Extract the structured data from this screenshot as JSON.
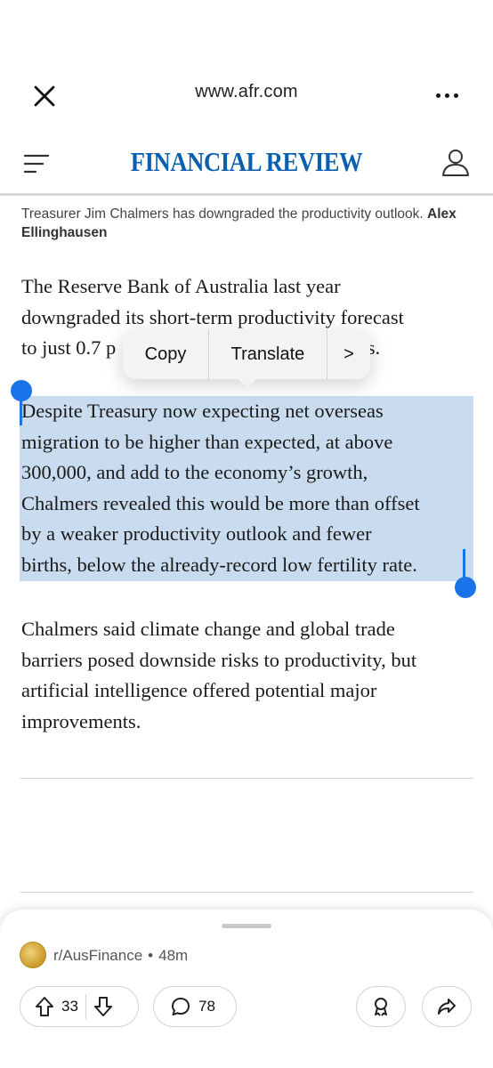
{
  "browser": {
    "url": "www.afr.com"
  },
  "site": {
    "brand": "FINANCIAL REVIEW"
  },
  "article": {
    "caption_text": "Treasurer Jim Chalmers has downgraded the productivity outlook.",
    "caption_credit": "Alex Ellinghausen",
    "para1": {
      "line1": "The Reserve Bank of Australia last year",
      "line2": "downgraded its short-term productivity forecast",
      "line3_start": "to just 0.7 p",
      "line3_end": "ars."
    },
    "para2": {
      "lines": [
        "Despite Treasury now expecting net overseas",
        "migration to be higher than expected, at above",
        "300,000, and add to the economy’s growth,",
        "Chalmers revealed this would be more than offset",
        "by a weaker productivity outlook and fewer",
        "births, below the already-record low fertility rate."
      ]
    },
    "para3": {
      "lines": [
        "Chalmers said climate change and global trade",
        "barriers posed downside risks to productivity, but",
        "artificial intelligence offered potential major",
        "improvements."
      ]
    }
  },
  "context_menu": {
    "copy": "Copy",
    "translate": "Translate",
    "more": ">"
  },
  "reddit_sheet": {
    "subreddit": "r/AusFinance",
    "separator": "•",
    "age": "48m",
    "upvotes": "33",
    "comments": "78"
  },
  "colors": {
    "brand": "#0b5fb0",
    "selection": "#c9dcef",
    "handle": "#1a73e8"
  }
}
